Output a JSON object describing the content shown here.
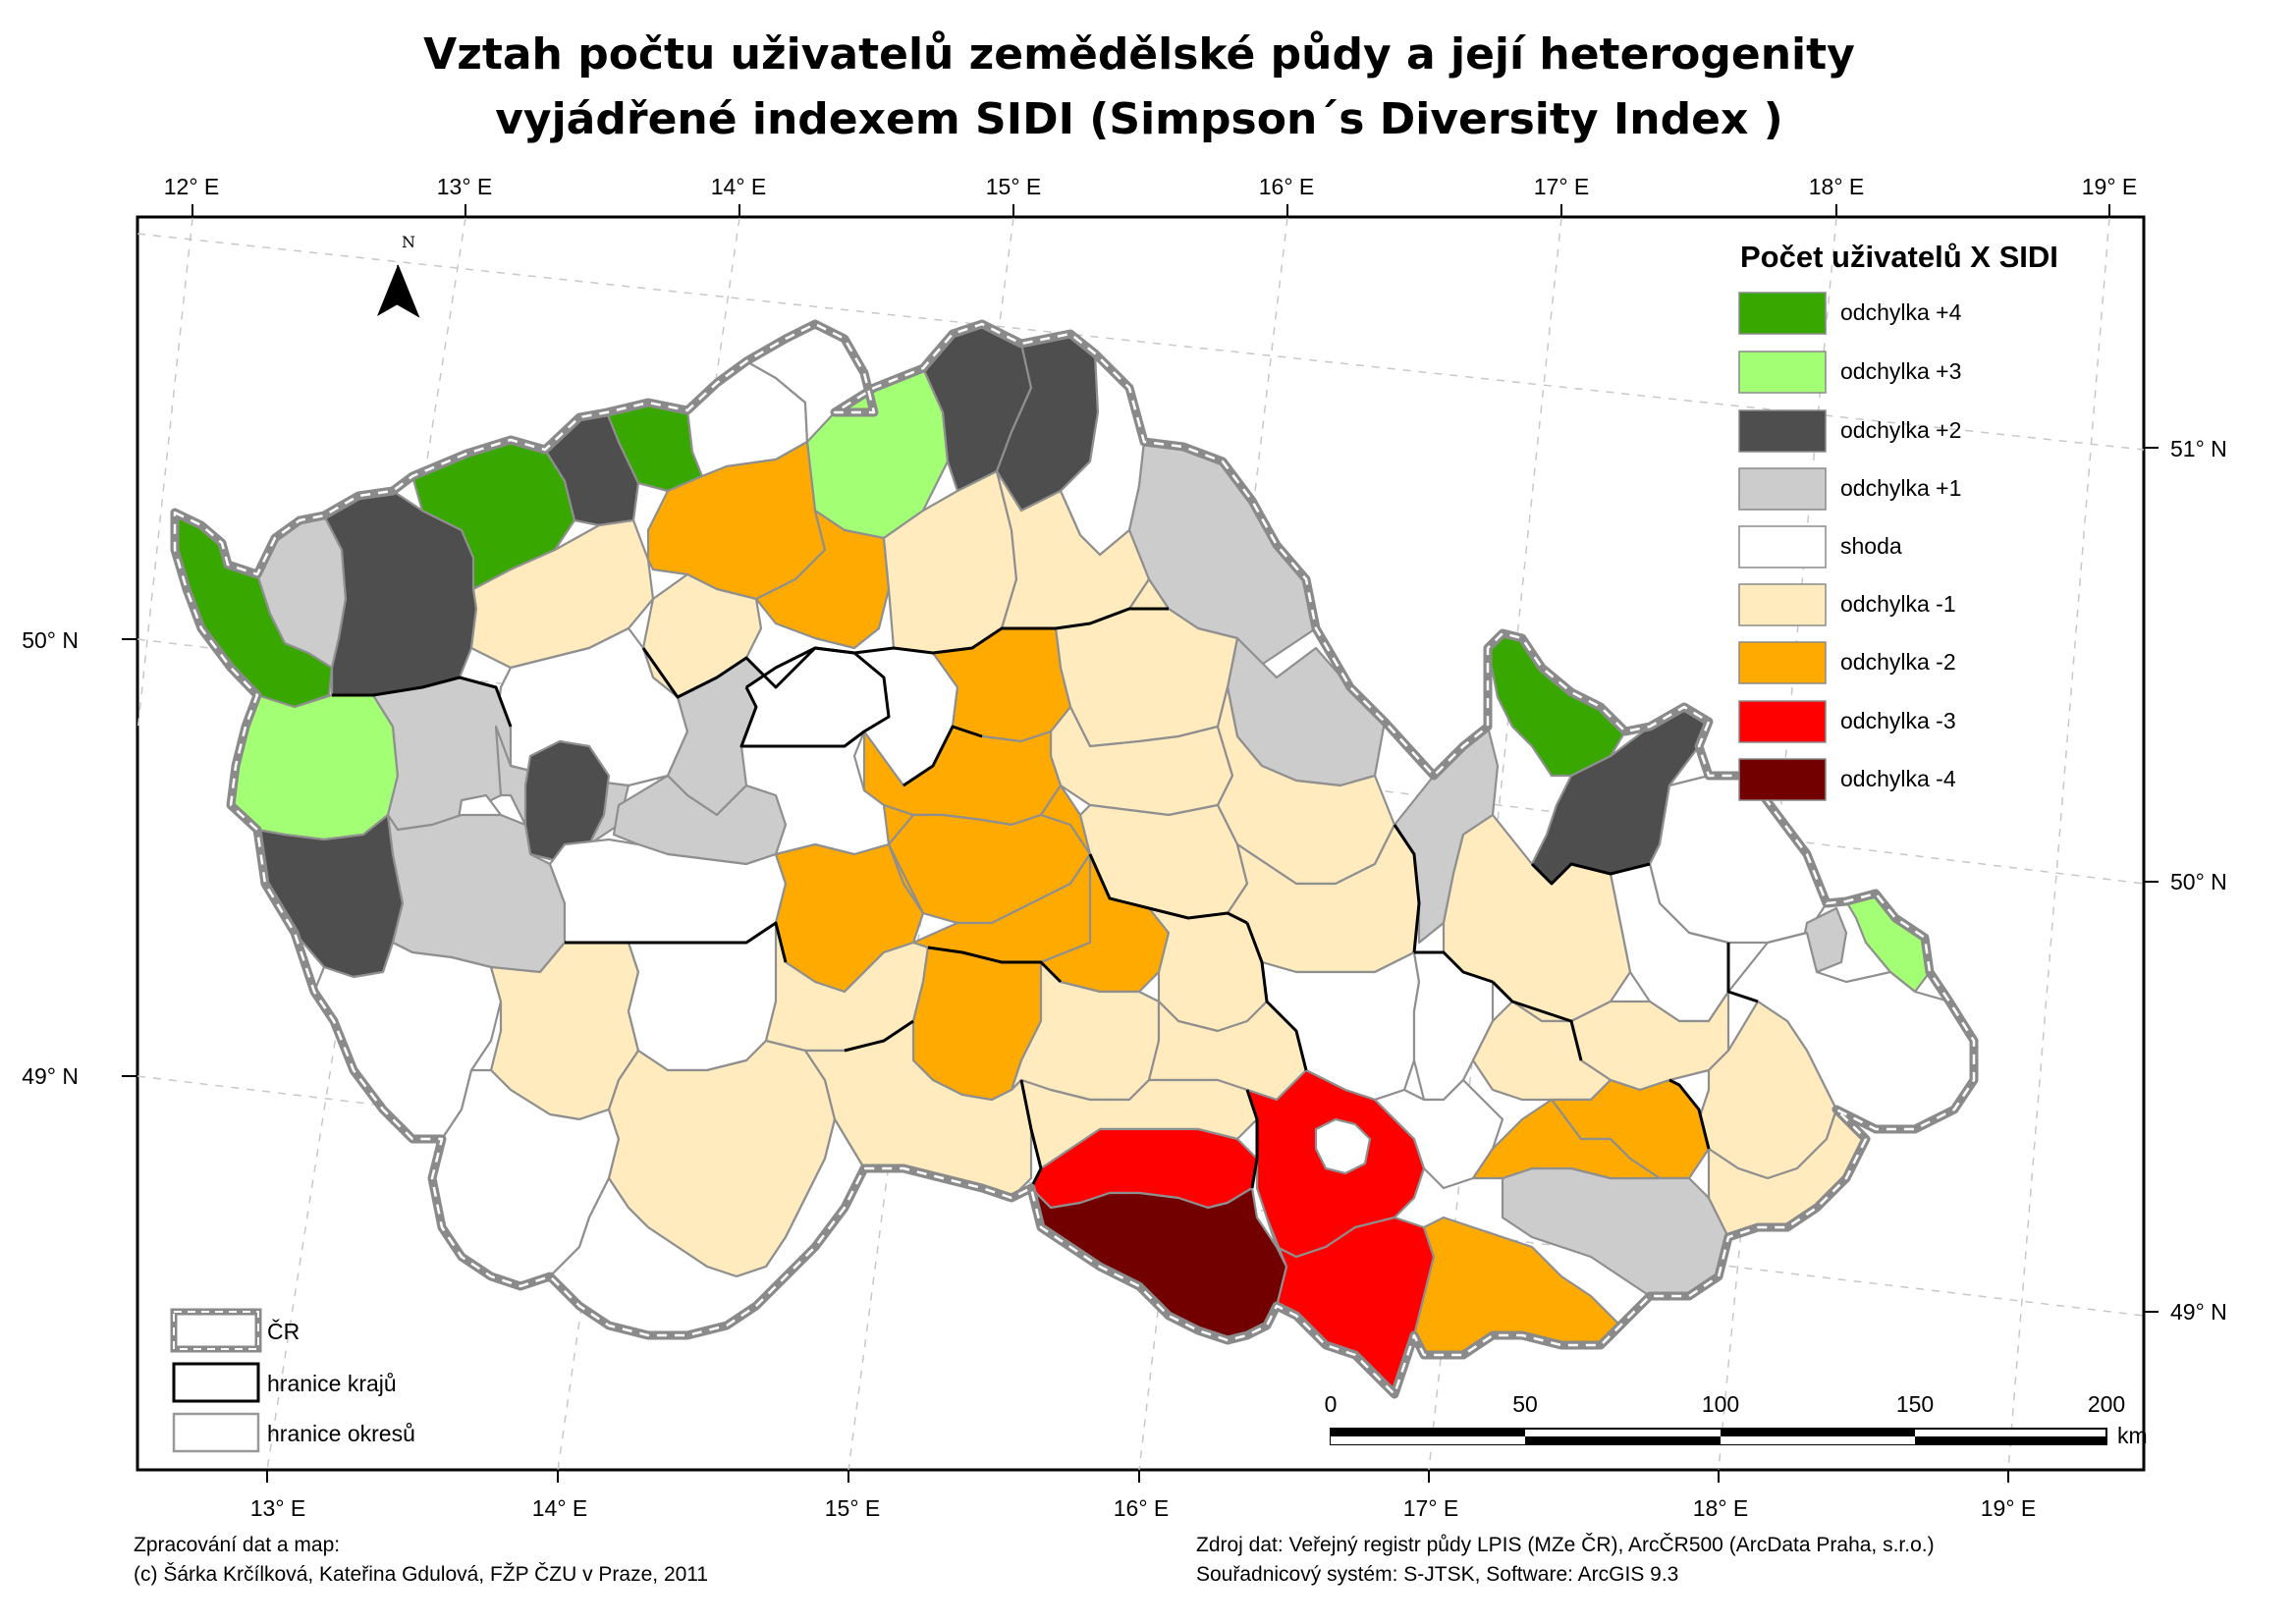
{
  "title": {
    "line1": "Vztah počtu uživatelů zemědělské půdy a její heterogenity",
    "line2": "vyjádřené indexem SIDI (Simpson´s Diversity Index )"
  },
  "graticule": {
    "top": [
      "12° E",
      "13° E",
      "14° E",
      "15° E",
      "16° E",
      "17° E",
      "18° E",
      "19° E"
    ],
    "bottom": [
      "13° E",
      "14° E",
      "15° E",
      "16° E",
      "17° E",
      "18° E",
      "19° E"
    ],
    "left": [
      "50° N",
      "49° N"
    ],
    "right": [
      "51° N",
      "50° N",
      "49° N"
    ]
  },
  "north_arrow": {
    "label": "N"
  },
  "legend": {
    "title": "Počet uživatelů X SIDI",
    "items": [
      {
        "label": "odchylka +4",
        "color": "#38a800"
      },
      {
        "label": "odchylka +3",
        "color": "#a3ff73"
      },
      {
        "label": "odchylka +2",
        "color": "#4e4e4e"
      },
      {
        "label": "odchylka +1",
        "color": "#cccccc"
      },
      {
        "label": "shoda",
        "color": "#ffffff"
      },
      {
        "label": "odchylka -1",
        "color": "#ffebbe"
      },
      {
        "label": "odchylka -2",
        "color": "#ffaa00"
      },
      {
        "label": "odchylka -3",
        "color": "#ff0000"
      },
      {
        "label": "odchylka -4",
        "color": "#730000"
      }
    ]
  },
  "boundary_legend": [
    {
      "label": "ČR"
    },
    {
      "label": "hranice krajů"
    },
    {
      "label": "hranice okresů"
    }
  ],
  "scale_bar": {
    "ticks": [
      "0",
      "50",
      "100",
      "150",
      "200"
    ],
    "unit": "km"
  },
  "footer": {
    "left1": "Zpracování dat a map:",
    "left2": "(c) Šárka Krčílková, Kateřina Gdulová, FŽP ČZU v Praze, 2011",
    "right1": "Zdroj dat: Veřejný registr půdy LPIS (MZe ČR), ArcČR500 (ArcData Praha, s.r.o.)",
    "right2": "Souřadnicový systém: S-JTSK, Software: ArcGIS 9.3"
  }
}
